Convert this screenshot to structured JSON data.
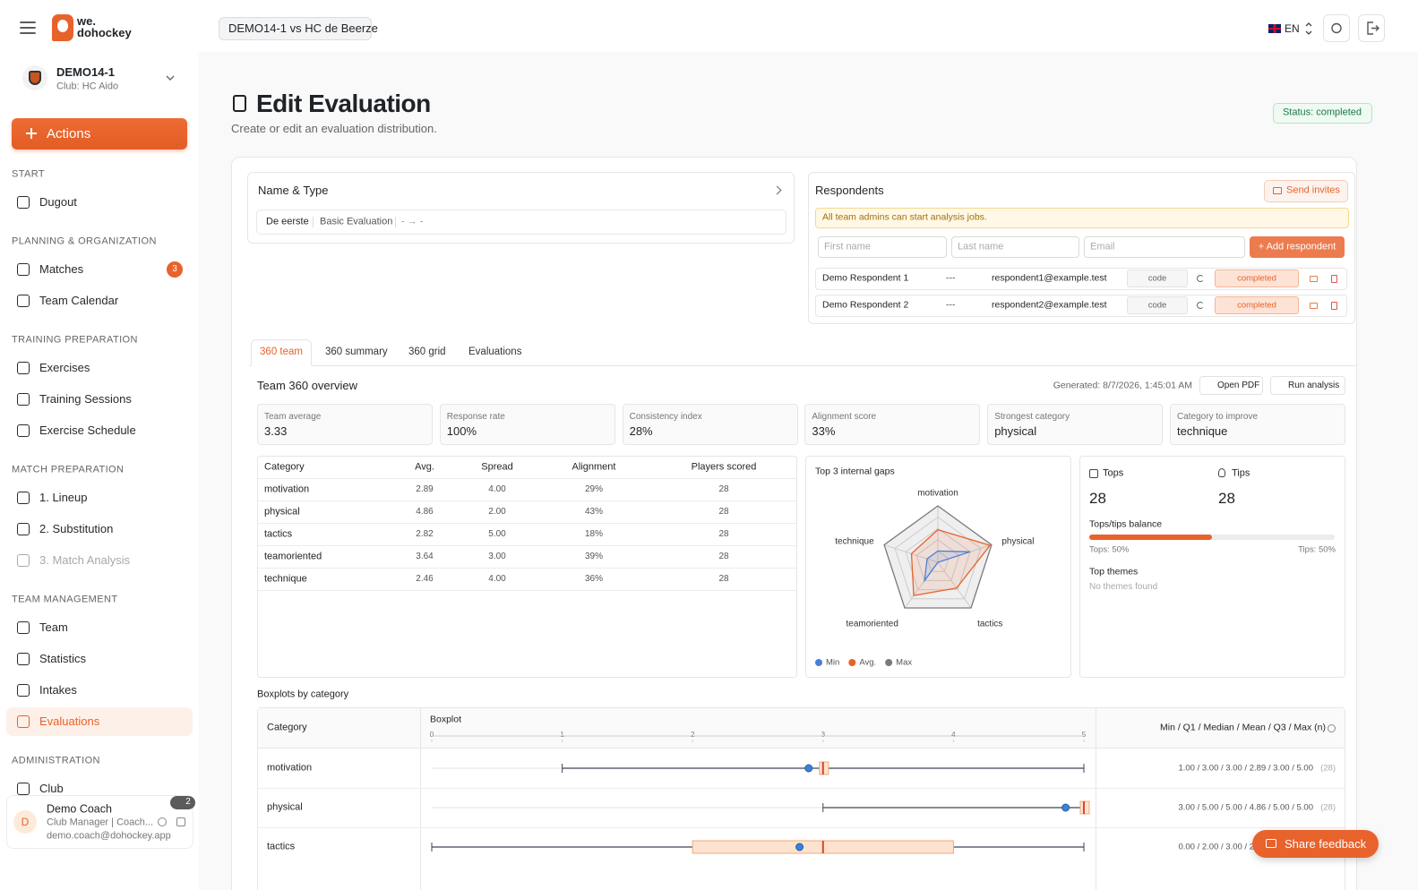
{
  "header": {
    "logo": [
      "we.",
      "dohockey"
    ],
    "match": "DEMO14-1 vs HC de Beerze",
    "lang": "EN"
  },
  "sidebar": {
    "team": {
      "name": "DEMO14-1",
      "club": "Club: HC Aido"
    },
    "actions": "Actions",
    "sections": [
      {
        "title": "START",
        "items": [
          {
            "label": "Dugout"
          }
        ]
      },
      {
        "title": "PLANNING & ORGANIZATION",
        "items": [
          {
            "label": "Matches",
            "badge": "3"
          },
          {
            "label": "Team Calendar"
          }
        ]
      },
      {
        "title": "TRAINING PREPARATION",
        "items": [
          {
            "label": "Exercises"
          },
          {
            "label": "Training Sessions"
          },
          {
            "label": "Exercise Schedule"
          }
        ]
      },
      {
        "title": "MATCH PREPARATION",
        "items": [
          {
            "label": "1. Lineup"
          },
          {
            "label": "2. Substitution"
          },
          {
            "label": "3. Match Analysis",
            "disabled": true
          }
        ]
      },
      {
        "title": "TEAM MANAGEMENT",
        "items": [
          {
            "label": "Team"
          },
          {
            "label": "Statistics"
          },
          {
            "label": "Intakes"
          },
          {
            "label": "Evaluations",
            "active": true
          }
        ]
      },
      {
        "title": "ADMINISTRATION",
        "items": [
          {
            "label": "Club"
          }
        ]
      }
    ],
    "user": {
      "initial": "D",
      "name": "Demo Coach",
      "role": "Club Manager | Coach...",
      "email": "demo.coach@dohockey.app",
      "badge": "2"
    }
  },
  "page": {
    "title": "Edit Evaluation",
    "subtitle": "Create or edit an evaluation distribution.",
    "status": "Status: completed"
  },
  "name_type": {
    "title": "Name & Type",
    "name": "De eerste",
    "type": "Basic Evaluation",
    "dates": "- → -"
  },
  "respondents": {
    "title": "Respondents",
    "send": "Send invites",
    "notice": "All team admins can start analysis jobs.",
    "placeholders": [
      "First name",
      "Last name",
      "Email"
    ],
    "add": "+ Add respondent",
    "rows": [
      {
        "name": "Demo Respondent 1",
        "dash": "---",
        "email": "respondent1@example.test",
        "code": "code",
        "status": "completed"
      },
      {
        "name": "Demo Respondent 2",
        "dash": "---",
        "email": "respondent2@example.test",
        "code": "code",
        "status": "completed"
      }
    ]
  },
  "tabs": [
    "360 team",
    "360 summary",
    "360 grid",
    "Evaluations"
  ],
  "overview": {
    "title": "Team 360 overview",
    "generated": "Generated: 8/7/2026, 1:45:01 AM",
    "open_pdf": "Open PDF",
    "run_analysis": "Run analysis",
    "kpis": [
      {
        "label": "Team average",
        "value": "3.33"
      },
      {
        "label": "Response rate",
        "value": "100%"
      },
      {
        "label": "Consistency index",
        "value": "28%"
      },
      {
        "label": "Alignment score",
        "value": "33%"
      },
      {
        "label": "Strongest category",
        "value": "physical"
      },
      {
        "label": "Category to improve",
        "value": "technique"
      }
    ],
    "table": {
      "header": [
        "Category",
        "Avg.",
        "Spread",
        "Alignment",
        "Players scored"
      ],
      "rows": [
        [
          "motivation",
          "2.89",
          "4.00",
          "29%",
          "28"
        ],
        [
          "physical",
          "4.86",
          "2.00",
          "43%",
          "28"
        ],
        [
          "tactics",
          "2.82",
          "5.00",
          "18%",
          "28"
        ],
        [
          "teamoriented",
          "3.64",
          "3.00",
          "39%",
          "28"
        ],
        [
          "technique",
          "2.46",
          "4.00",
          "36%",
          "28"
        ]
      ]
    },
    "radar": {
      "type": "radar",
      "title": "Top 3 internal gaps",
      "categories": [
        "motivation",
        "physical",
        "tactics",
        "teamoriented",
        "technique"
      ],
      "rlim": [
        0,
        5
      ],
      "rticks": [
        1,
        2,
        3,
        4,
        5
      ],
      "series": [
        {
          "name": "Max",
          "color": "#7a7a7a",
          "values": [
            5,
            5,
            5,
            5,
            5
          ]
        },
        {
          "name": "Avg.",
          "color": "#e8622c",
          "values": [
            2.89,
            4.86,
            2.82,
            3.64,
            2.46
          ]
        },
        {
          "name": "Min",
          "color": "#4a7fd8",
          "values": [
            1,
            3,
            0,
            2,
            1
          ]
        }
      ]
    },
    "tops": {
      "tops_label": "Tops",
      "tips_label": "Tips",
      "tops": "28",
      "tips": "28",
      "balance_title": "Tops/tips balance",
      "balance": 50,
      "tops_share": "Tops: 50%",
      "tips_share": "Tips: 50%",
      "themes_title": "Top themes",
      "themes_empty": "No themes found"
    }
  },
  "boxplots": {
    "title": "Boxplots by category",
    "header": [
      "Category",
      "Boxplot",
      "Min / Q1 / Median / Mean / Q3 / Max (n)"
    ],
    "xlim": [
      0,
      5
    ],
    "xticks": [
      0,
      1,
      2,
      3,
      4,
      5
    ],
    "rows": [
      {
        "category": "motivation",
        "min": 1,
        "q1": 3,
        "median": 3,
        "mean": 2.89,
        "q3": 3,
        "max": 5,
        "label": "1.00 / 3.00 / 3.00 / 2.89 / 3.00 / 5.00",
        "n": "(28)"
      },
      {
        "category": "physical",
        "min": 3,
        "q1": 5,
        "median": 5,
        "mean": 4.86,
        "q3": 5,
        "max": 5,
        "label": "3.00 / 5.00 / 5.00 / 4.86 / 5.00 / 5.00",
        "n": "(28)"
      },
      {
        "category": "tactics",
        "min": 0,
        "q1": 2,
        "median": 3,
        "mean": 2.82,
        "q3": 4,
        "max": 5,
        "label": "0.00 / 2.00 / 3.00 / 2.82 / 4.00 / 5.00",
        "n": "(28)"
      }
    ]
  },
  "feedback": "Share feedback"
}
